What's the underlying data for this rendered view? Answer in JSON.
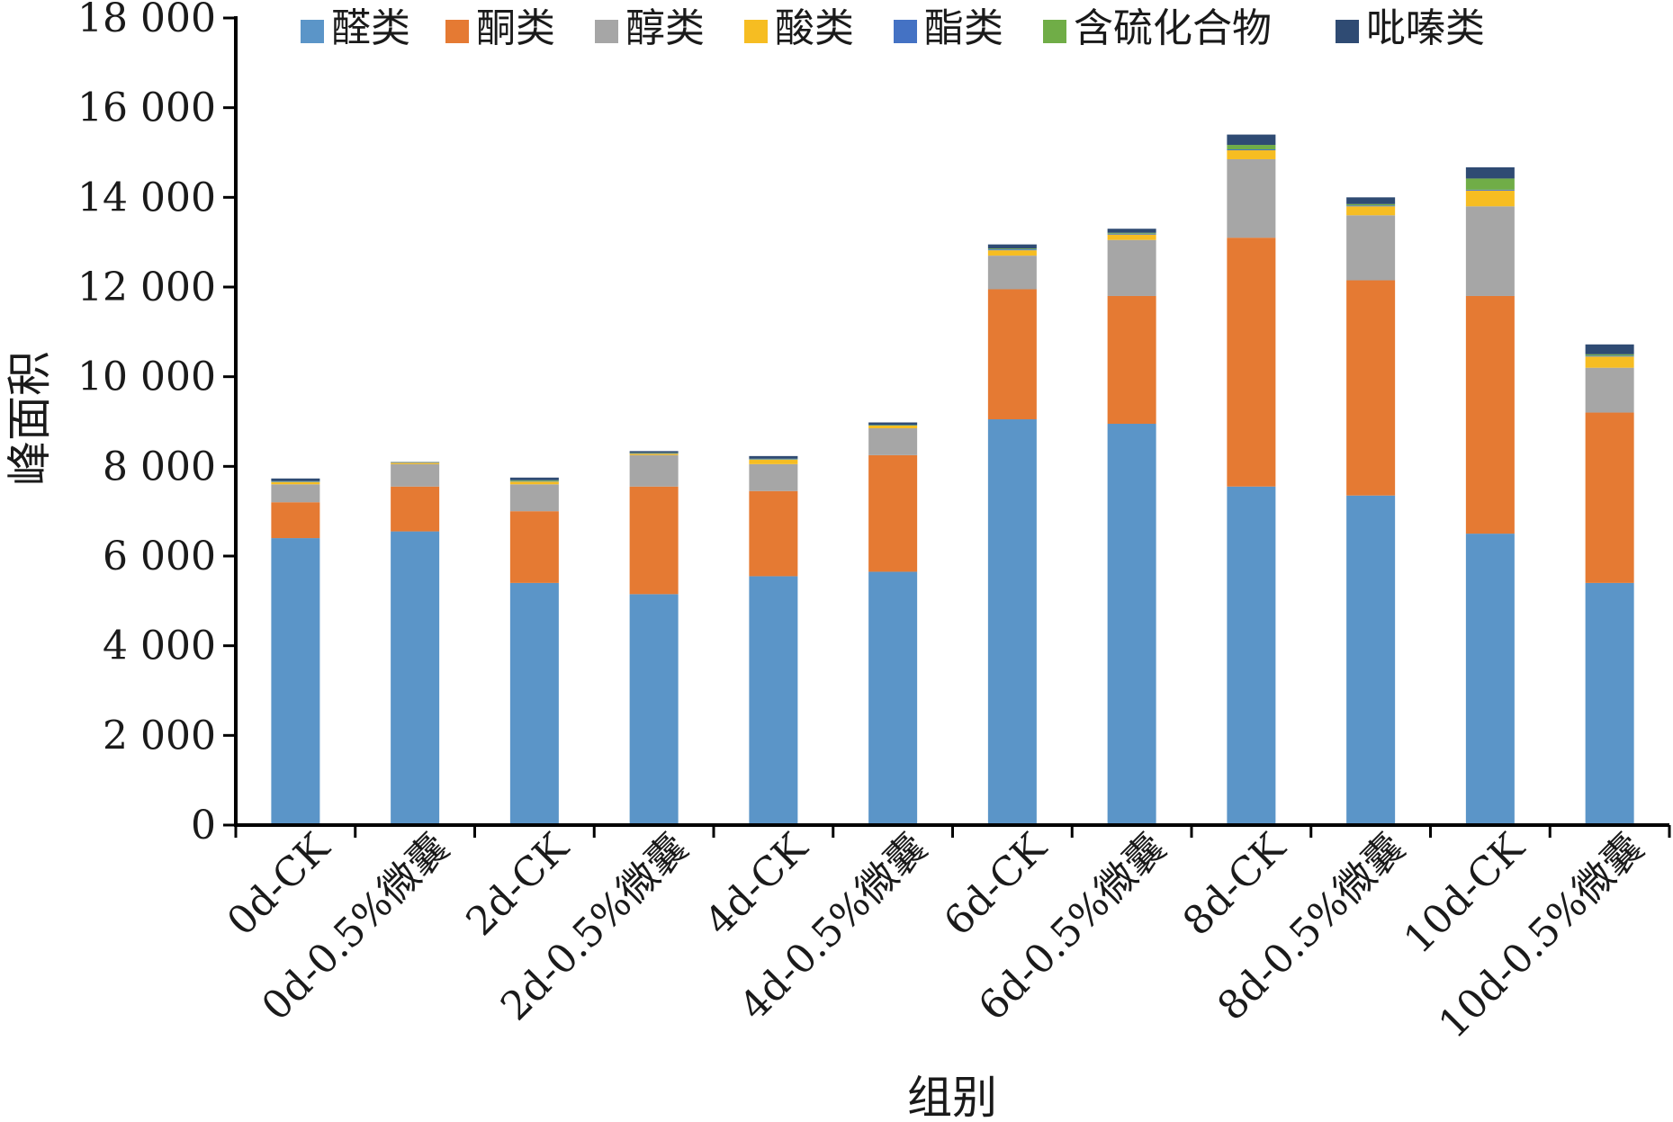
{
  "chart_data": {
    "type": "bar",
    "stacked": true,
    "xlabel": "组别",
    "ylabel": "峰面积",
    "ylim": [
      0,
      18000
    ],
    "yticks": [
      0,
      2000,
      4000,
      6000,
      8000,
      10000,
      12000,
      14000,
      16000,
      18000
    ],
    "ytick_labels": [
      "0",
      "2 000",
      "4 000",
      "6 000",
      "8 000",
      "10 000",
      "12 000",
      "14 000",
      "16 000",
      "18 000"
    ],
    "legend_position": "top",
    "grid": false,
    "categories": [
      "0d-CK",
      "0d-0.5%微囊",
      "2d-CK",
      "2d-0.5%微囊",
      "4d-CK",
      "4d-0.5%微囊",
      "6d-CK",
      "6d-0.5%微囊",
      "8d-CK",
      "8d-0.5%微囊",
      "10d-CK",
      "10d-0.5%微囊"
    ],
    "series": [
      {
        "name": "醛类",
        "color": "#5b95c8",
        "values": [
          6400,
          6550,
          5400,
          5150,
          5550,
          5650,
          9050,
          8950,
          7550,
          7350,
          6500,
          5400
        ]
      },
      {
        "name": "酮类",
        "color": "#e57a33",
        "values": [
          800,
          1000,
          1600,
          2400,
          1900,
          2600,
          2900,
          2850,
          5550,
          4800,
          5300,
          3800
        ]
      },
      {
        "name": "醇类",
        "color": "#a6a6a6",
        "values": [
          400,
          500,
          600,
          700,
          600,
          600,
          750,
          1250,
          1750,
          1450,
          2000,
          1000
        ]
      },
      {
        "name": "酸类",
        "color": "#f6bd22",
        "values": [
          50,
          30,
          60,
          30,
          100,
          60,
          120,
          120,
          200,
          200,
          350,
          250
        ]
      },
      {
        "name": "酯类",
        "color": "#4472c4",
        "values": [
          10,
          10,
          10,
          10,
          10,
          10,
          20,
          20,
          20,
          20,
          20,
          20
        ]
      },
      {
        "name": "含硫化合物",
        "color": "#70ad47",
        "values": [
          10,
          5,
          20,
          10,
          10,
          10,
          20,
          20,
          100,
          30,
          250,
          30
        ]
      },
      {
        "name": "吡嗪类",
        "color": "#2f4b73",
        "values": [
          60,
          5,
          60,
          40,
          60,
          50,
          90,
          90,
          230,
          150,
          250,
          220
        ]
      }
    ]
  }
}
